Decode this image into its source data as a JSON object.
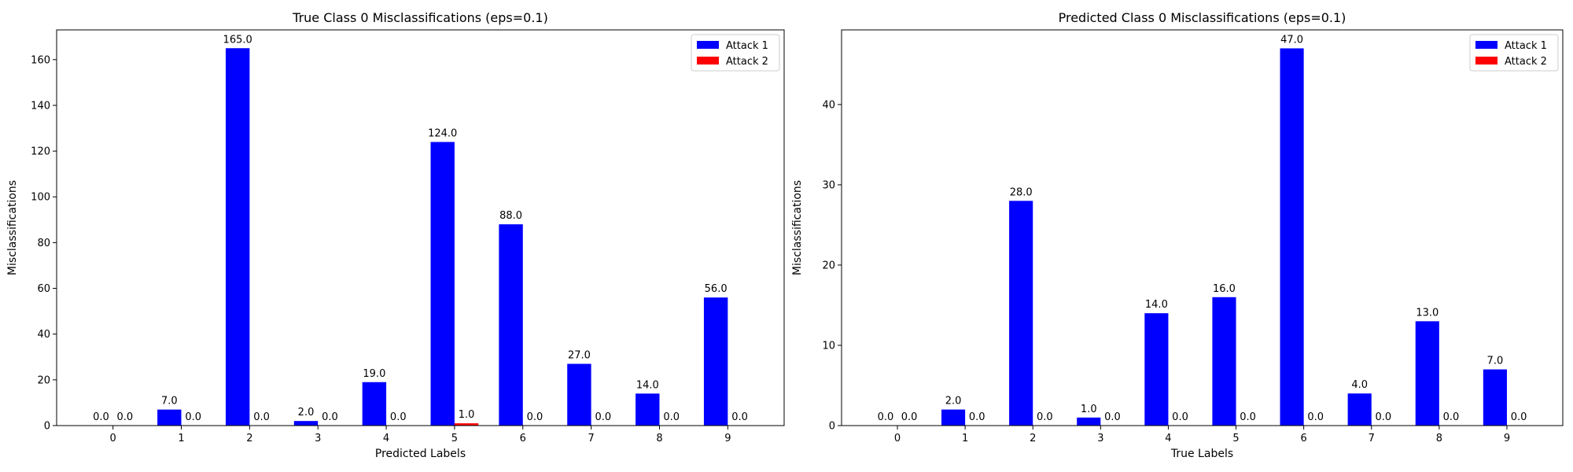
{
  "chart_data": [
    {
      "type": "bar",
      "title": "True Class 0 Misclassifications (eps=0.1)",
      "xlabel": "Predicted Labels",
      "ylabel": "Misclassifications",
      "categories": [
        "0",
        "1",
        "2",
        "3",
        "4",
        "5",
        "6",
        "7",
        "8",
        "9"
      ],
      "series": [
        {
          "name": "Attack 1",
          "color": "#0000ff",
          "values": [
            0,
            7,
            165,
            2,
            19,
            124,
            88,
            27,
            14,
            56
          ]
        },
        {
          "name": "Attack 2",
          "color": "#ff0000",
          "values": [
            0,
            0,
            0,
            0,
            0,
            1,
            0,
            0,
            0,
            0
          ]
        }
      ],
      "ylim": [
        0,
        173
      ],
      "yticks": [
        0,
        20,
        40,
        60,
        80,
        100,
        120,
        140,
        160
      ],
      "legend": "top-right",
      "grid": false
    },
    {
      "type": "bar",
      "title": "Predicted Class 0 Misclassifications (eps=0.1)",
      "xlabel": "True Labels",
      "ylabel": "Misclassifications",
      "categories": [
        "0",
        "1",
        "2",
        "3",
        "4",
        "5",
        "6",
        "7",
        "8",
        "9"
      ],
      "series": [
        {
          "name": "Attack 1",
          "color": "#0000ff",
          "values": [
            0,
            2,
            28,
            1,
            14,
            16,
            47,
            4,
            13,
            7
          ]
        },
        {
          "name": "Attack 2",
          "color": "#ff0000",
          "values": [
            0,
            0,
            0,
            0,
            0,
            0,
            0,
            0,
            0,
            0
          ]
        }
      ],
      "ylim": [
        0,
        49.3
      ],
      "yticks": [
        0,
        10,
        20,
        30,
        40
      ],
      "legend": "top-right",
      "grid": false
    }
  ]
}
